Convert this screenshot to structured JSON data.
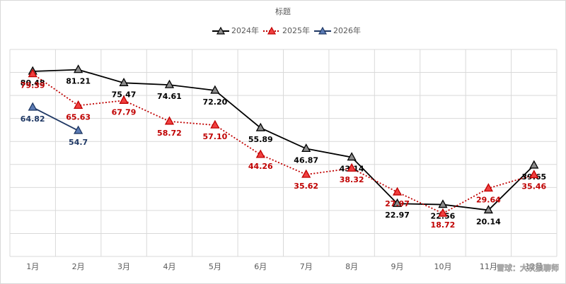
{
  "chart_data": {
    "type": "line",
    "title": "标题",
    "categories": [
      "1月",
      "2月",
      "3月",
      "4月",
      "5月",
      "6月",
      "7月",
      "8月",
      "9月",
      "10月",
      "11月",
      "12月"
    ],
    "series": [
      {
        "name": "2024年",
        "color": "#000000",
        "marker_fill": "#8c8c8c",
        "dash": "solid",
        "values": [
          80.48,
          81.21,
          75.47,
          74.61,
          72.2,
          55.89,
          46.87,
          43.14,
          22.97,
          22.56,
          20.14,
          39.65
        ],
        "value_labels": [
          "80.48",
          "81.21",
          "75.47",
          "74.61",
          "72.20",
          "55.89",
          "46.87",
          "43.14",
          "22.97",
          "22.56",
          "20.14",
          "39.65"
        ]
      },
      {
        "name": "2025年",
        "color": "#c00000",
        "marker_fill": "#f04040",
        "dash": "dotted",
        "values": [
          79.39,
          65.63,
          67.79,
          58.72,
          57.1,
          44.26,
          35.62,
          38.32,
          27.97,
          18.72,
          29.64,
          35.46
        ],
        "value_labels": [
          "79.39",
          "65.63",
          "67.79",
          "58.72",
          "57.10",
          "44.26",
          "35.62",
          "38.32",
          "27.97",
          "18.72",
          "29.64",
          "35.46"
        ]
      },
      {
        "name": "2026年",
        "color": "#1f3864",
        "marker_fill": "#5b7bb5",
        "dash": "solid",
        "values": [
          64.82,
          54.7,
          null,
          null,
          null,
          null,
          null,
          null,
          null,
          null,
          null,
          null
        ],
        "value_labels": [
          "64.82",
          "54.7",
          null,
          null,
          null,
          null,
          null,
          null,
          null,
          null,
          null,
          null
        ]
      }
    ],
    "ylim": [
      0,
      90
    ],
    "yticks": [
      0,
      10,
      20,
      30,
      40,
      50,
      60,
      70,
      80,
      90
    ],
    "grid": true,
    "legend": "top",
    "watermark": "雪球：大灰狼聊师"
  }
}
